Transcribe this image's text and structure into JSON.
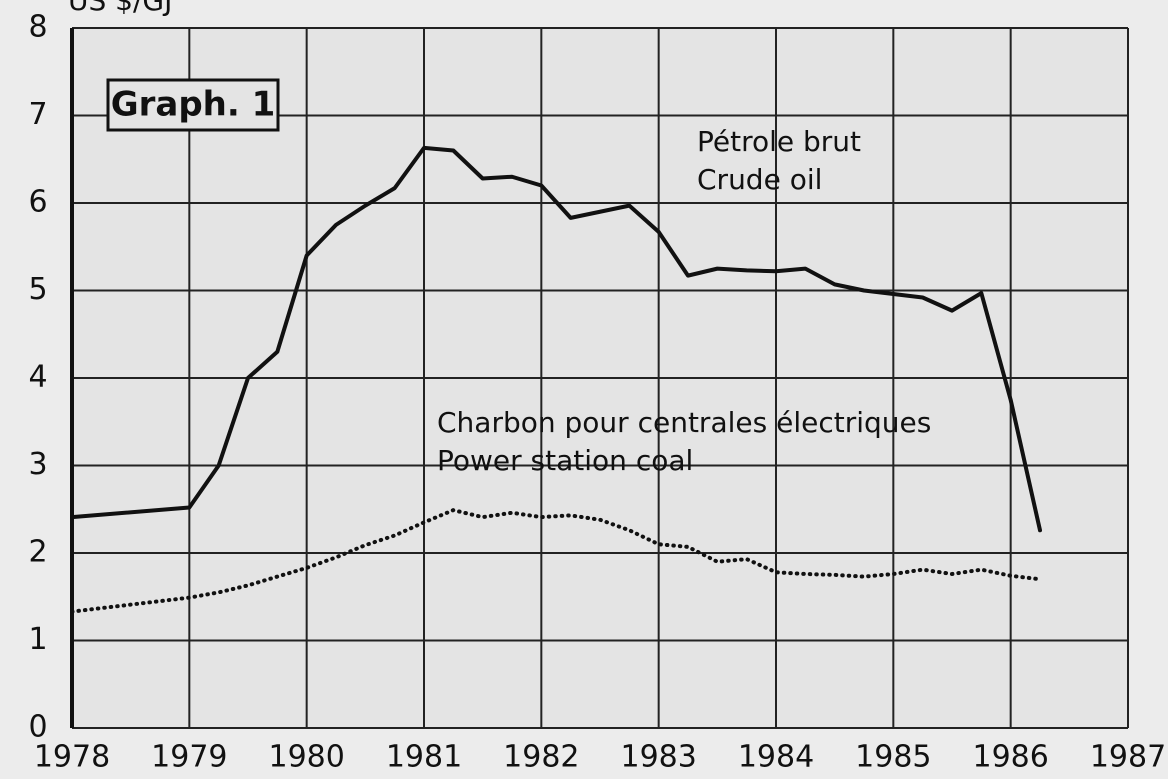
{
  "chart_data": {
    "type": "line",
    "y_label": "US $/GJ",
    "annotations": [
      "Graph. 1"
    ],
    "x": [
      1978,
      1979,
      1979.25,
      1979.5,
      1979.75,
      1980,
      1980.25,
      1980.5,
      1980.75,
      1981,
      1981.25,
      1981.5,
      1981.75,
      1982,
      1982.25,
      1982.5,
      1982.75,
      1983,
      1983.25,
      1983.5,
      1983.75,
      1984,
      1984.25,
      1984.5,
      1984.75,
      1985,
      1985.25,
      1985.5,
      1985.75,
      1986,
      1986.25
    ],
    "series": [
      {
        "name": [
          "Pétrole brut",
          "Crude oil"
        ],
        "color": "#111111",
        "line_style": "solid",
        "values": [
          2.41,
          2.52,
          3.0,
          4.0,
          4.3,
          5.4,
          5.75,
          5.97,
          6.17,
          6.63,
          6.6,
          6.28,
          6.3,
          6.2,
          5.83,
          5.9,
          5.97,
          5.67,
          5.17,
          5.25,
          5.23,
          5.22,
          5.25,
          5.07,
          5.0,
          4.96,
          4.92,
          4.77,
          4.97,
          3.75,
          2.26
        ]
      },
      {
        "name": [
          "Charbon pour centrales électriques",
          "Power station coal"
        ],
        "color": "#111111",
        "line_style": "dotted",
        "values": [
          1.33,
          1.49,
          1.55,
          1.63,
          1.73,
          1.83,
          1.95,
          2.09,
          2.2,
          2.35,
          2.49,
          2.41,
          2.46,
          2.41,
          2.43,
          2.38,
          2.26,
          2.1,
          2.07,
          1.9,
          1.93,
          1.78,
          1.76,
          1.75,
          1.73,
          1.76,
          1.81,
          1.76,
          1.81,
          1.74,
          1.7
        ]
      }
    ],
    "xlim": [
      1978,
      1987
    ],
    "xticks": [
      1978,
      1979,
      1980,
      1981,
      1982,
      1983,
      1984,
      1985,
      1986,
      1987
    ],
    "ylim": [
      0,
      8
    ],
    "yticks": [
      0,
      1,
      2,
      3,
      4,
      5,
      6,
      7,
      8
    ],
    "grid": true
  }
}
